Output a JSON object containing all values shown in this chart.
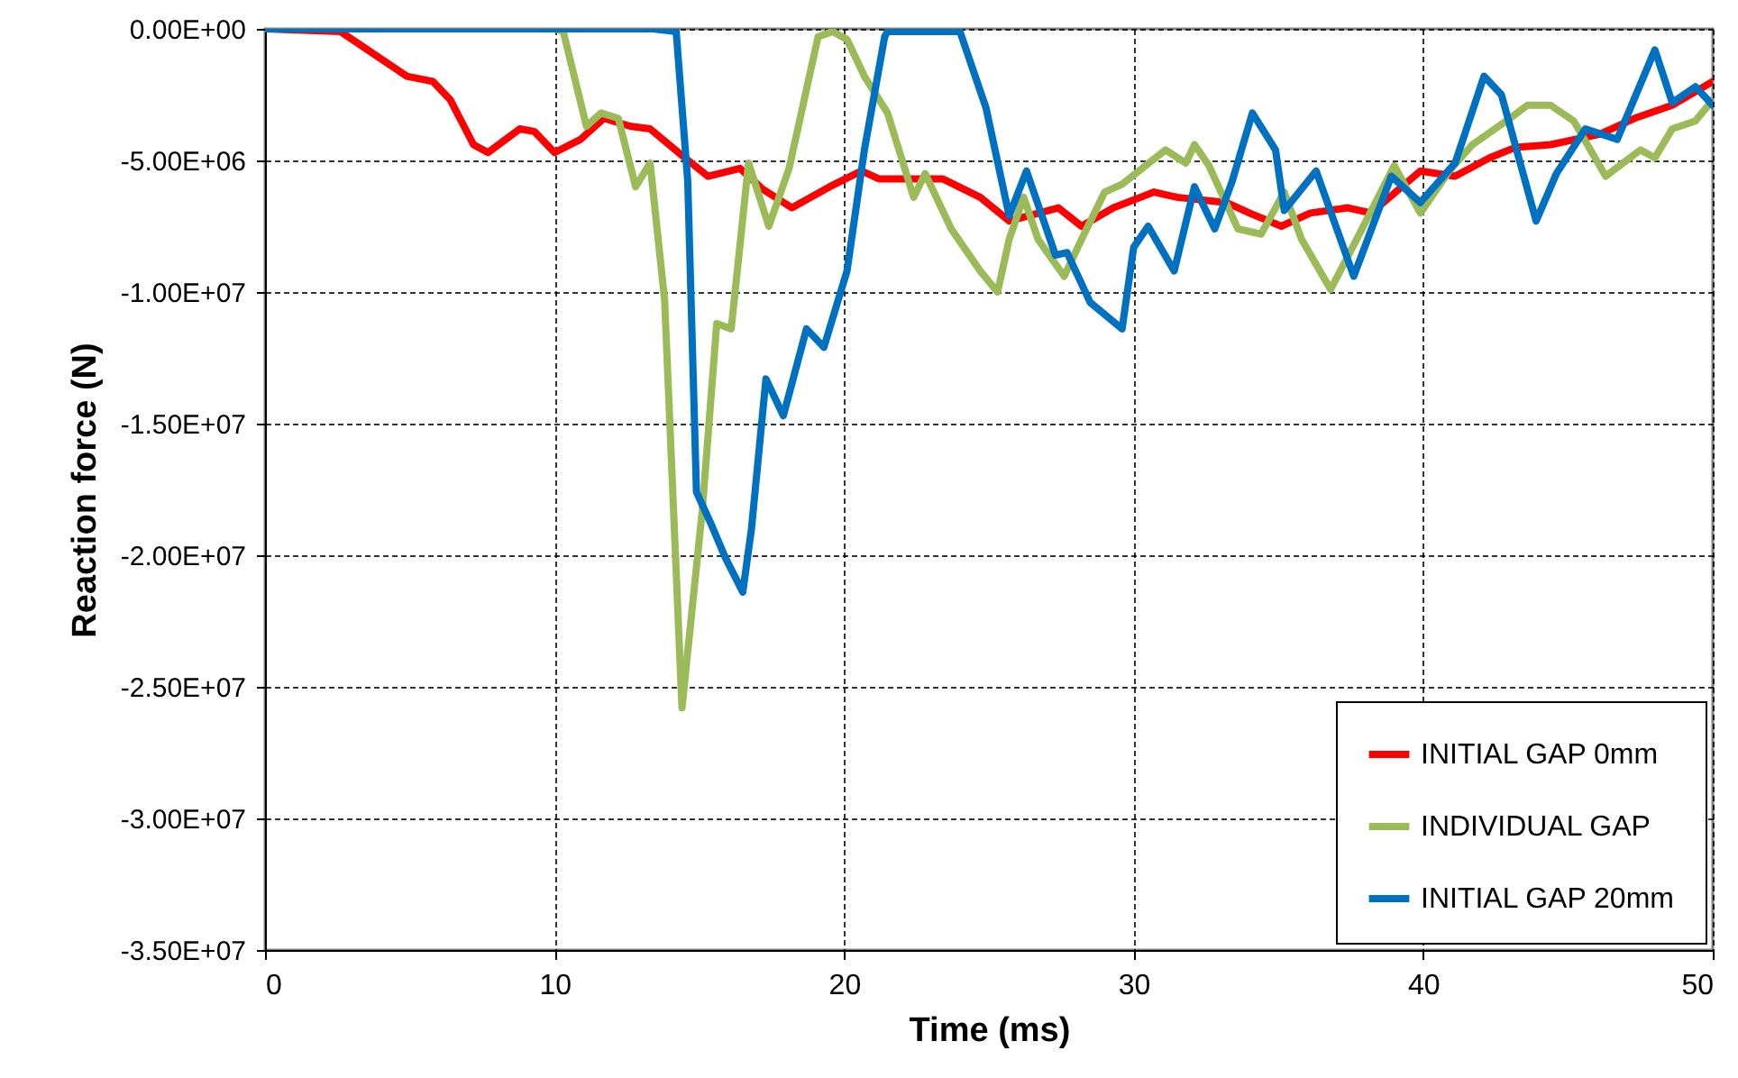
{
  "chart_data": {
    "type": "line",
    "xlabel": "Time (ms)",
    "ylabel": "Reaction force (N)",
    "xlim": [
      0,
      50
    ],
    "xticks": [
      0,
      10,
      20,
      30,
      40,
      50
    ],
    "ylim": [
      -35000000,
      0
    ],
    "yticks": [
      {
        "value": 0,
        "label": "0.00E+00"
      },
      {
        "value": -5000000,
        "label": "-5.00E+06"
      },
      {
        "value": -10000000,
        "label": "-1.00E+07"
      },
      {
        "value": -15000000,
        "label": "-1.50E+07"
      },
      {
        "value": -20000000,
        "label": "-2.00E+07"
      },
      {
        "value": -25000000,
        "label": "-2.50E+07"
      },
      {
        "value": -30000000,
        "label": "-3.00E+07"
      },
      {
        "value": -35000000,
        "label": "-3.50E+07"
      }
    ],
    "grid": true,
    "legend": "bottom right",
    "marker": "none",
    "line_style": "solid",
    "series": [
      {
        "name": "INITIAL GAP 0mm",
        "color": "#ff0000",
        "x": [
          0,
          2.6,
          4.9,
          5.8,
          6.4,
          7.2,
          7.7,
          8.8,
          9.3,
          10.0,
          10.9,
          11.7,
          12.6,
          13.3,
          14.5,
          15.3,
          16.4,
          17.2,
          18.2,
          19.5,
          20.6,
          21.2,
          22.4,
          23.4,
          24.7,
          25.7,
          27.4,
          28.2,
          29.3,
          30.7,
          31.5,
          33.2,
          34.0,
          35.1,
          36.1,
          37.4,
          38.2,
          39.9,
          41.1,
          42.3,
          43.2,
          44.4,
          46.1,
          47.3,
          48.6,
          50.0
        ],
        "values": [
          0,
          -100000,
          -1800000,
          -2000000,
          -2700000,
          -4400000,
          -4700000,
          -3800000,
          -3900000,
          -4700000,
          -4200000,
          -3400000,
          -3700000,
          -3800000,
          -4900000,
          -5600000,
          -5300000,
          -6100000,
          -6800000,
          -6000000,
          -5400000,
          -5700000,
          -5700000,
          -5700000,
          -6400000,
          -7300000,
          -6800000,
          -7500000,
          -6800000,
          -6200000,
          -6400000,
          -6600000,
          -7000000,
          -7500000,
          -7000000,
          -6800000,
          -7000000,
          -5400000,
          -5600000,
          -4900000,
          -4500000,
          -4400000,
          -4000000,
          -3400000,
          -2900000,
          -2000000
        ]
      },
      {
        "name": "INDIVIDUAL GAP",
        "color": "#9bbb59",
        "x": [
          0,
          10.0,
          10.3,
          11.1,
          11.6,
          12.2,
          12.8,
          13.3,
          13.8,
          14.4,
          15.1,
          15.6,
          16.1,
          16.7,
          17.4,
          18.1,
          19.1,
          19.6,
          20.1,
          20.7,
          21.5,
          22.4,
          22.8,
          23.7,
          24.7,
          25.3,
          25.7,
          26.2,
          26.7,
          27.6,
          28.2,
          29.0,
          29.6,
          31.1,
          31.8,
          32.1,
          32.6,
          33.6,
          34.4,
          35.2,
          35.8,
          36.8,
          37.7,
          39.0,
          39.9,
          40.9,
          41.7,
          43.0,
          43.6,
          44.4,
          45.2,
          46.3,
          47.5,
          48.0,
          48.6,
          49.4,
          50.0
        ],
        "values": [
          0,
          0,
          -100000,
          -3700000,
          -3200000,
          -3400000,
          -6000000,
          -5100000,
          -10300000,
          -25800000,
          -18300000,
          -11200000,
          -11400000,
          -5100000,
          -7500000,
          -5300000,
          -300000,
          -100000,
          -400000,
          -1800000,
          -3200000,
          -6400000,
          -5500000,
          -7600000,
          -9200000,
          -10000000,
          -8000000,
          -6400000,
          -8000000,
          -9400000,
          -8000000,
          -6200000,
          -5900000,
          -4600000,
          -5100000,
          -4400000,
          -5200000,
          -7600000,
          -7800000,
          -6200000,
          -8000000,
          -9900000,
          -8000000,
          -5200000,
          -7000000,
          -5400000,
          -4400000,
          -3400000,
          -2900000,
          -2900000,
          -3500000,
          -5600000,
          -4600000,
          -4900000,
          -3800000,
          -3500000,
          -2700000
        ]
      },
      {
        "name": "INITIAL GAP 20mm",
        "color": "#0070c0",
        "x": [
          0,
          13.4,
          14.2,
          14.6,
          14.9,
          15.4,
          15.9,
          16.5,
          16.8,
          17.3,
          17.9,
          18.7,
          19.3,
          20.1,
          20.7,
          21.4,
          21.5,
          24.0,
          24.9,
          25.7,
          26.3,
          27.3,
          27.7,
          28.5,
          29.6,
          30.0,
          30.5,
          31.4,
          32.1,
          32.8,
          33.4,
          34.1,
          34.9,
          35.2,
          36.3,
          37.6,
          38.9,
          39.9,
          41.1,
          42.1,
          42.7,
          43.9,
          44.6,
          45.6,
          46.7,
          48.0,
          48.6,
          49.4,
          50.0
        ],
        "values": [
          0,
          0,
          -100000,
          -5800000,
          -17600000,
          -18800000,
          -20100000,
          -21400000,
          -19000000,
          -13300000,
          -14700000,
          -11400000,
          -12100000,
          -9200000,
          -4600000,
          -300000,
          -100000,
          -100000,
          -3000000,
          -7100000,
          -5400000,
          -8600000,
          -8500000,
          -10400000,
          -11400000,
          -8300000,
          -7500000,
          -9200000,
          -6000000,
          -7600000,
          -5800000,
          -3200000,
          -4600000,
          -6900000,
          -5400000,
          -9400000,
          -5600000,
          -6600000,
          -5100000,
          -1800000,
          -2500000,
          -7300000,
          -5500000,
          -3800000,
          -4200000,
          -800000,
          -2800000,
          -2200000,
          -2900000
        ]
      }
    ]
  }
}
